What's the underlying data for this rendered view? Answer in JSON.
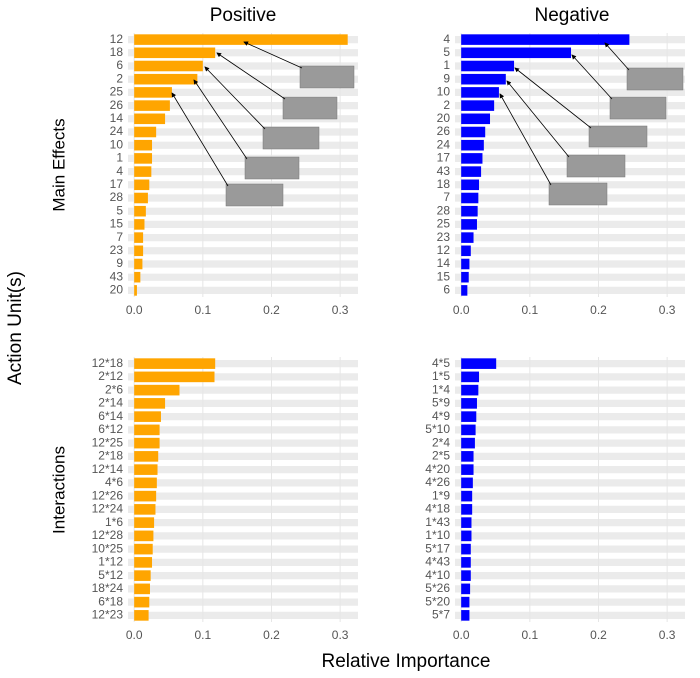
{
  "column_titles": [
    "Positive",
    "Negative"
  ],
  "row_titles": [
    "Main Effects",
    "Interactions"
  ],
  "y_label": "Action Unit(s)",
  "x_label": "Relative Importance",
  "chart_data": [
    {
      "type": "bar",
      "orientation": "horizontal",
      "color": "#FFA500",
      "categories": [
        "12",
        "18",
        "6",
        "2",
        "25",
        "26",
        "14",
        "24",
        "10",
        "1",
        "4",
        "17",
        "28",
        "5",
        "15",
        "7",
        "23",
        "9",
        "43",
        "20"
      ],
      "values": [
        0.311,
        0.118,
        0.1,
        0.092,
        0.055,
        0.052,
        0.045,
        0.032,
        0.026,
        0.026,
        0.025,
        0.022,
        0.02,
        0.017,
        0.015,
        0.013,
        0.013,
        0.012,
        0.009,
        0.004
      ],
      "xlim": [
        -0.009,
        0.326
      ],
      "xticks": [
        {
          "value": 0,
          "label": "0.0"
        },
        0.1,
        0.2,
        0.3
      ],
      "grid": true
    },
    {
      "type": "bar",
      "orientation": "horizontal",
      "color": "#0000FF",
      "categories": [
        "4",
        "5",
        "1",
        "9",
        "10",
        "2",
        "20",
        "26",
        "24",
        "17",
        "43",
        "18",
        "7",
        "28",
        "25",
        "23",
        "12",
        "14",
        "15",
        "6"
      ],
      "values": [
        0.245,
        0.16,
        0.077,
        0.065,
        0.055,
        0.048,
        0.042,
        0.035,
        0.033,
        0.031,
        0.029,
        0.026,
        0.025,
        0.024,
        0.023,
        0.018,
        0.014,
        0.012,
        0.011,
        0.009
      ],
      "xlim": [
        -0.009,
        0.326
      ],
      "xticks": [
        {
          "value": 0,
          "label": "0.0"
        },
        0.1,
        0.2,
        0.3
      ],
      "grid": true
    },
    {
      "type": "bar",
      "orientation": "horizontal",
      "color": "#FFA500",
      "categories": [
        "12*18",
        "2*12",
        "2*6",
        "2*14",
        "6*14",
        "6*12",
        "12*25",
        "2*18",
        "12*14",
        "4*6",
        "12*26",
        "12*24",
        "1*6",
        "12*28",
        "10*25",
        "1*12",
        "5*12",
        "18*24",
        "6*18",
        "12*23"
      ],
      "values": [
        0.118,
        0.117,
        0.066,
        0.045,
        0.039,
        0.037,
        0.037,
        0.035,
        0.034,
        0.033,
        0.032,
        0.031,
        0.029,
        0.028,
        0.027,
        0.026,
        0.024,
        0.023,
        0.022,
        0.021
      ],
      "xlim": [
        -0.009,
        0.326
      ],
      "xticks": [
        {
          "value": 0,
          "label": "0.0"
        },
        0.1,
        0.2,
        0.3
      ],
      "grid": true
    },
    {
      "type": "bar",
      "orientation": "horizontal",
      "color": "#0000FF",
      "categories": [
        "4*5",
        "1*5",
        "1*4",
        "5*9",
        "4*9",
        "5*10",
        "2*4",
        "2*5",
        "4*20",
        "4*26",
        "1*9",
        "4*18",
        "1*43",
        "1*10",
        "5*17",
        "4*43",
        "4*10",
        "5*26",
        "5*20",
        "5*7"
      ],
      "values": [
        0.051,
        0.026,
        0.025,
        0.023,
        0.022,
        0.021,
        0.02,
        0.018,
        0.018,
        0.017,
        0.016,
        0.016,
        0.015,
        0.015,
        0.014,
        0.014,
        0.014,
        0.013,
        0.012,
        0.012
      ],
      "xlim": [
        -0.009,
        0.326
      ],
      "xticks": [
        {
          "value": 0,
          "label": "0.0"
        },
        0.1,
        0.2,
        0.3
      ],
      "grid": true
    }
  ]
}
